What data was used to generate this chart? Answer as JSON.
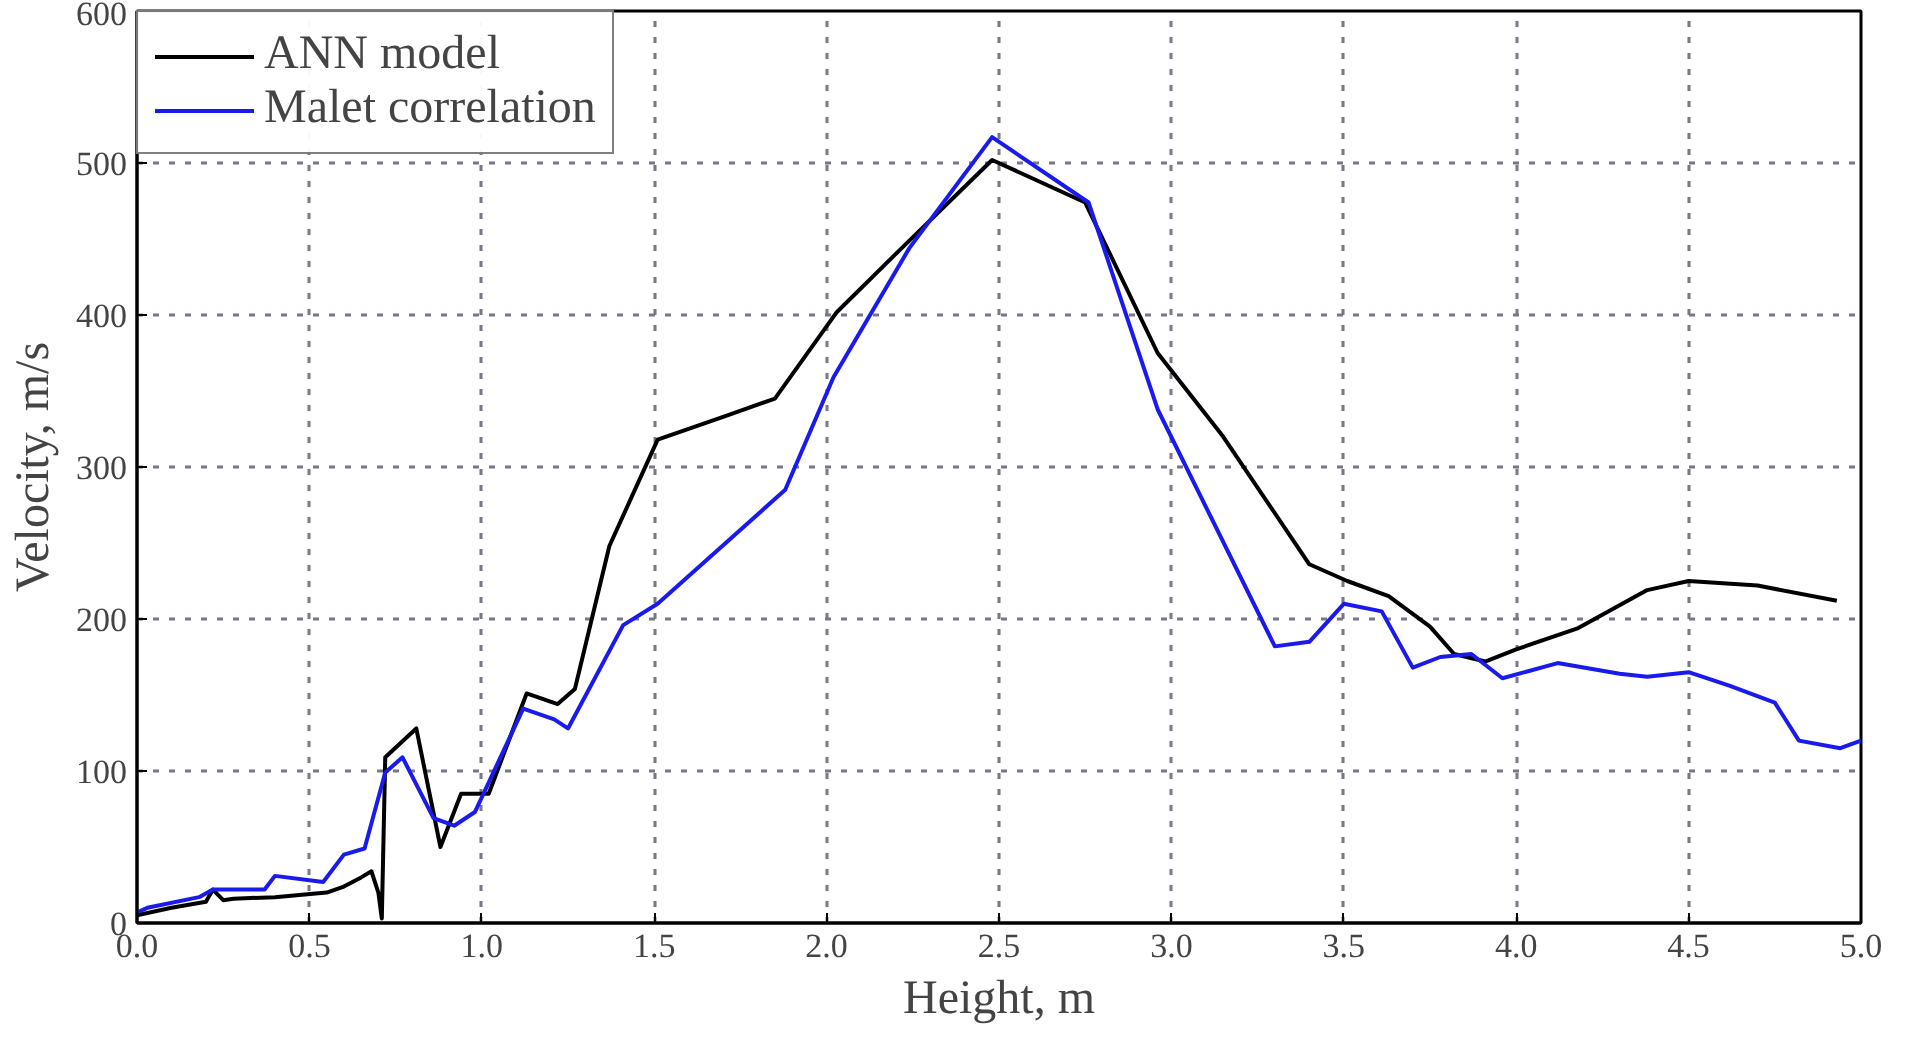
{
  "chart_data": {
    "type": "line",
    "xlabel": "Height, m",
    "ylabel": "Velocity, m/s",
    "xlim": [
      0,
      5
    ],
    "ylim": [
      0,
      600
    ],
    "xticks": [
      {
        "value": 0,
        "label": "0.0"
      },
      {
        "value": 0.5,
        "label": "0.5"
      },
      {
        "value": 1,
        "label": "1.0"
      },
      {
        "value": 1.5,
        "label": "1.5"
      },
      {
        "value": 2,
        "label": "2.0"
      },
      {
        "value": 2.5,
        "label": "2.5"
      },
      {
        "value": 3,
        "label": "3.0"
      },
      {
        "value": 3.5,
        "label": "3.5"
      },
      {
        "value": 4,
        "label": "4.0"
      },
      {
        "value": 4.5,
        "label": "4.5"
      },
      {
        "value": 5,
        "label": "5.0"
      }
    ],
    "yticks": [
      0,
      100,
      200,
      300,
      400,
      500,
      600
    ],
    "grid": true,
    "legend": "top left",
    "line_style": "solid",
    "marker": "none",
    "series": [
      {
        "name": "ANN model",
        "color": "#000000",
        "x": [
          0,
          0.1,
          0.2,
          0.22,
          0.25,
          0.28,
          0.4,
          0.55,
          0.6,
          0.65,
          0.68,
          0.7,
          0.71,
          0.72,
          0.81,
          0.88,
          0.94,
          1.02,
          1.13,
          1.22,
          1.27,
          1.37,
          1.51,
          1.7,
          1.85,
          2.03,
          2.2,
          2.48,
          2.75,
          2.96,
          3.15,
          3.4,
          3.51,
          3.63,
          3.75,
          3.82,
          3.91,
          4.0,
          4.18,
          4.38,
          4.5,
          4.7,
          4.93
        ],
        "values": [
          5,
          10,
          14,
          22,
          15,
          16,
          17,
          20,
          24,
          30,
          34,
          20,
          3,
          109,
          128,
          50,
          85,
          85,
          151,
          144,
          154,
          248,
          318,
          333,
          345,
          402,
          440,
          502,
          474,
          375,
          320,
          236,
          225,
          215,
          195,
          177,
          172,
          180,
          194,
          219,
          225,
          222,
          212
        ]
      },
      {
        "name": "Malet correlation",
        "color": "#1a1aee",
        "x": [
          0,
          0.03,
          0.18,
          0.22,
          0.37,
          0.4,
          0.54,
          0.6,
          0.66,
          0.72,
          0.77,
          0.86,
          0.92,
          0.98,
          1.12,
          1.21,
          1.25,
          1.41,
          1.51,
          1.88,
          2.02,
          2.24,
          2.48,
          2.76,
          2.96,
          3.3,
          3.4,
          3.5,
          3.61,
          3.7,
          3.78,
          3.87,
          3.96,
          4.12,
          4.3,
          4.38,
          4.5,
          4.62,
          4.75,
          4.82,
          4.94,
          5.0
        ],
        "values": [
          7,
          10,
          17,
          22,
          22,
          31,
          27,
          45,
          49,
          99,
          109,
          69,
          64,
          73,
          141,
          134,
          128,
          196,
          210,
          285,
          359,
          444,
          517,
          474,
          338,
          182,
          185,
          210,
          205,
          168,
          175,
          177,
          161,
          171,
          164,
          162,
          165,
          156,
          145,
          120,
          115,
          120
        ]
      }
    ]
  }
}
